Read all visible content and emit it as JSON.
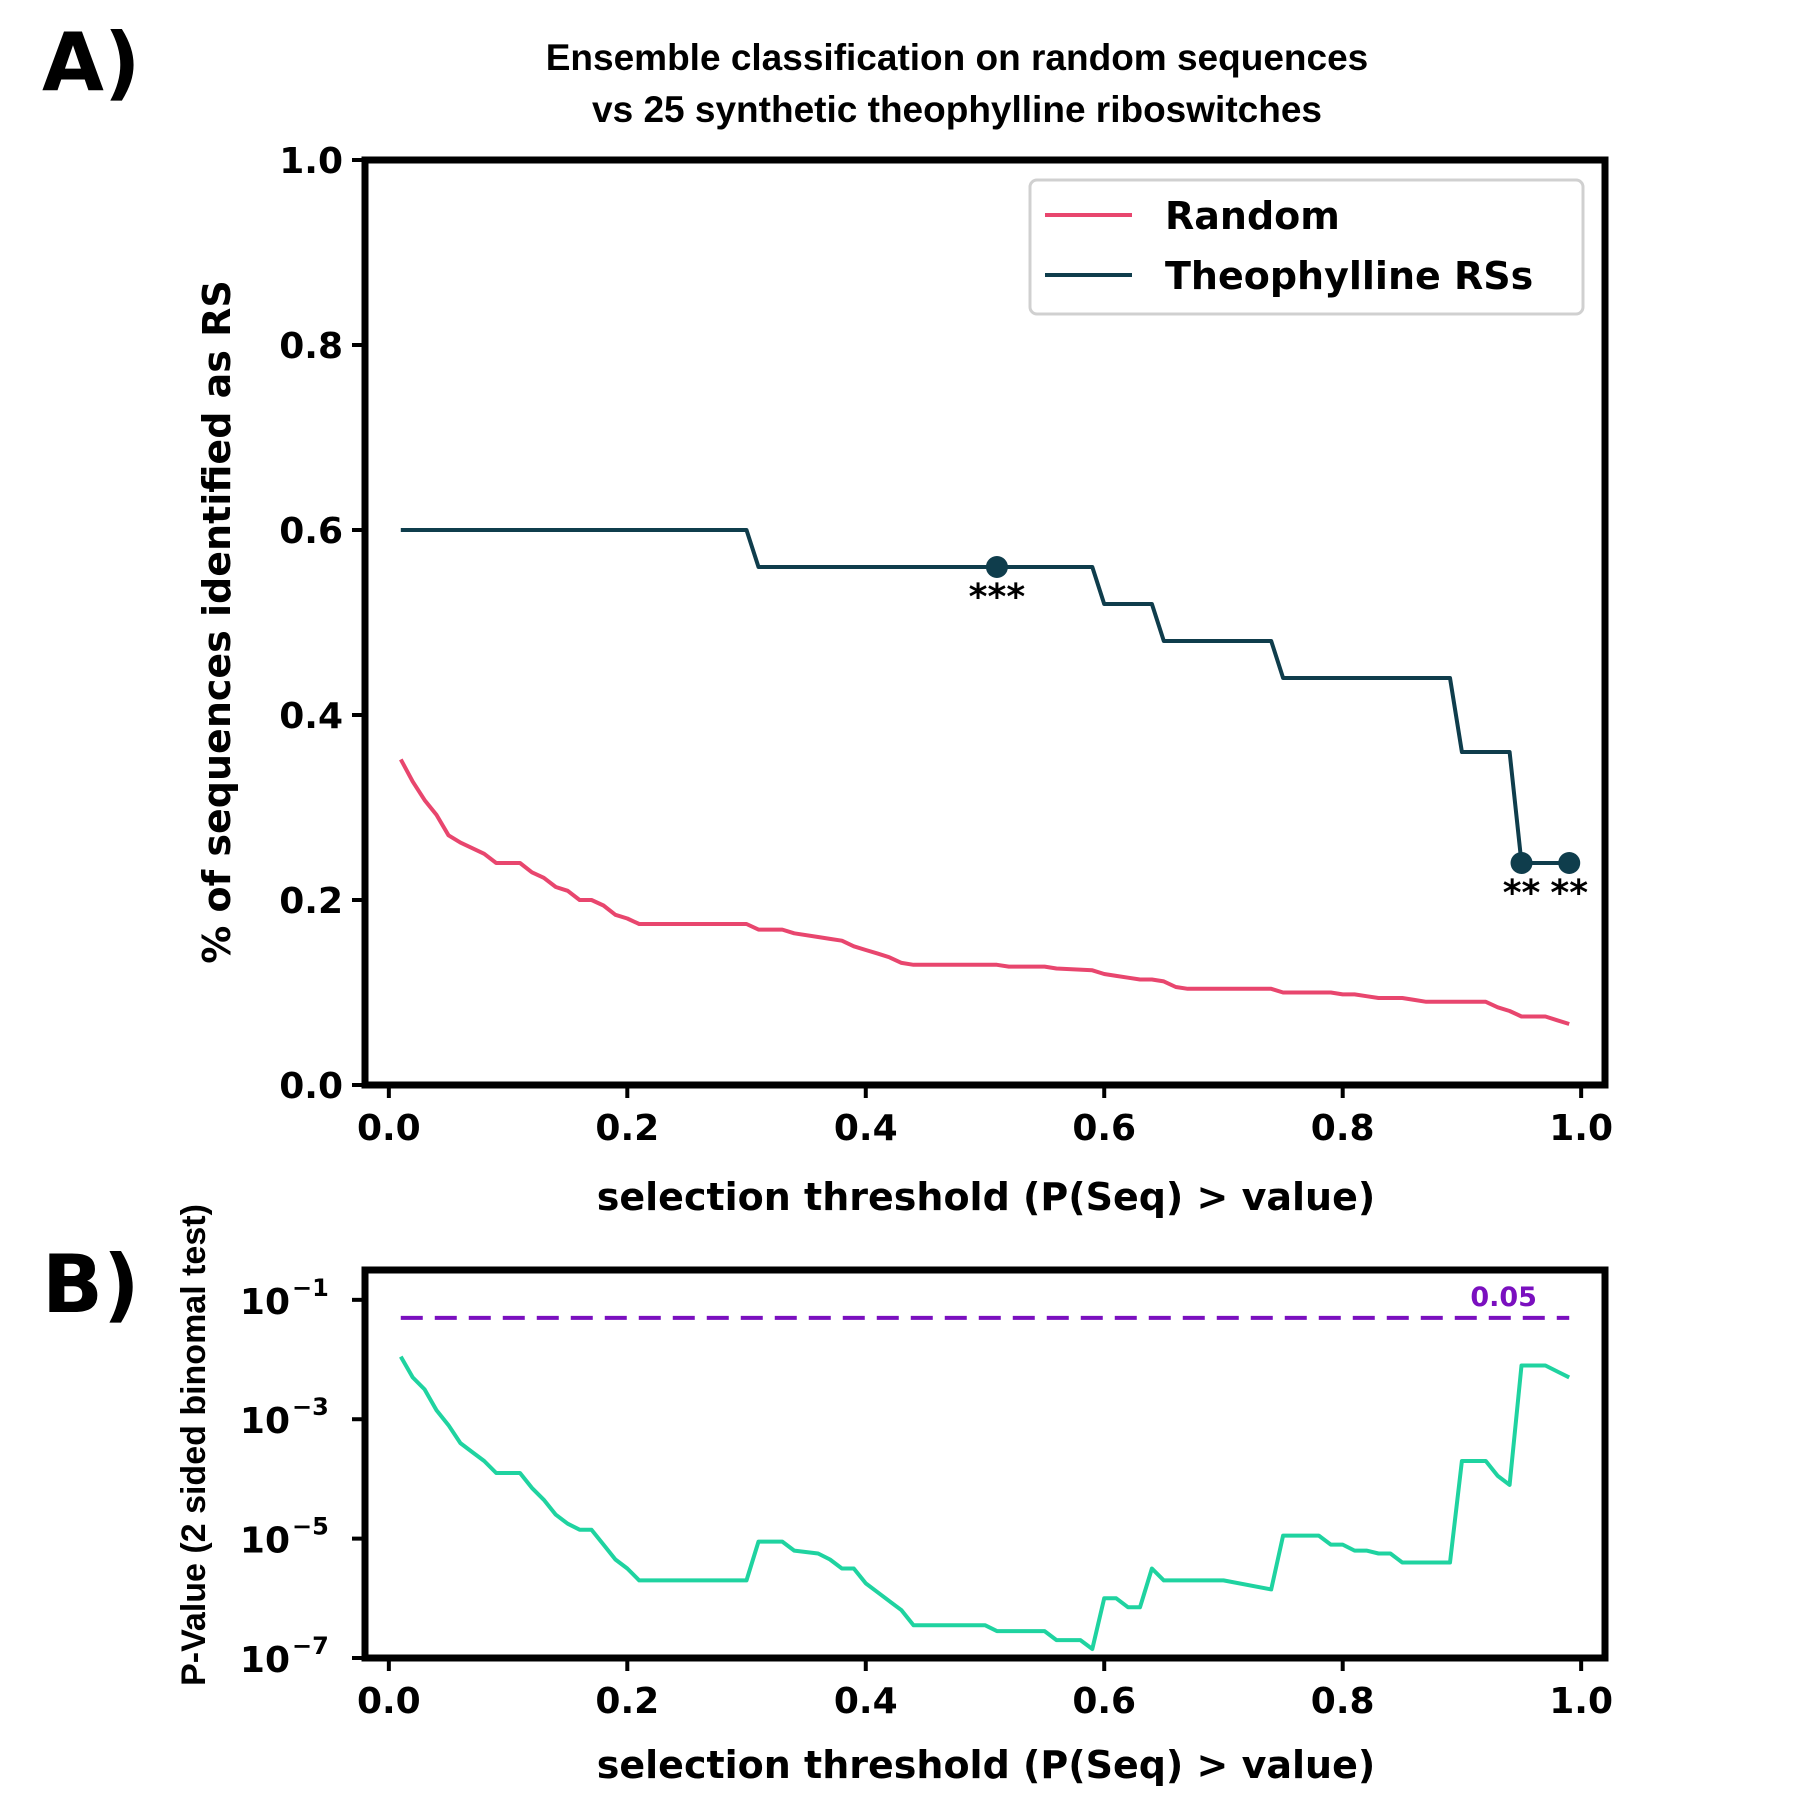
{
  "panel_a": {
    "label": "A)",
    "title_line1": "Ensemble classification on random sequences",
    "title_line2": "vs 25 synthetic theophylline riboswitches"
  },
  "panel_b": {
    "label": "B)"
  },
  "chart_data": [
    {
      "type": "line",
      "panel": "A",
      "title": "Ensemble classification on random sequences vs 25 synthetic theophylline riboswitches",
      "xlabel": "selection threshold (P(Seq) > value)",
      "ylabel": "% of sequences identified as RS",
      "xlim": [
        -0.02,
        1.02
      ],
      "ylim": [
        0,
        1.0
      ],
      "xticks": [
        "0.0",
        "0.2",
        "0.4",
        "0.6",
        "0.8",
        "1.0"
      ],
      "yticks": [
        "0.0",
        "0.2",
        "0.4",
        "0.6",
        "0.8",
        "1.0"
      ],
      "grid": false,
      "legend_position": "top-right",
      "series": [
        {
          "name": "Random",
          "color": "#e8466e",
          "x": [
            0.01,
            0.02,
            0.03,
            0.04,
            0.05,
            0.06,
            0.07,
            0.08,
            0.09,
            0.1,
            0.11,
            0.12,
            0.13,
            0.14,
            0.15,
            0.16,
            0.17,
            0.18,
            0.19,
            0.2,
            0.21,
            0.25,
            0.3,
            0.31,
            0.33,
            0.34,
            0.36,
            0.37,
            0.38,
            0.39,
            0.4,
            0.41,
            0.42,
            0.43,
            0.44,
            0.5,
            0.51,
            0.52,
            0.55,
            0.56,
            0.59,
            0.6,
            0.61,
            0.62,
            0.63,
            0.64,
            0.65,
            0.66,
            0.67,
            0.7,
            0.74,
            0.75,
            0.78,
            0.79,
            0.8,
            0.81,
            0.82,
            0.83,
            0.84,
            0.85,
            0.86,
            0.87,
            0.9,
            0.92,
            0.93,
            0.94,
            0.95,
            0.96,
            0.97,
            0.98,
            0.99
          ],
          "y": [
            0.352,
            0.328,
            0.308,
            0.292,
            0.27,
            0.262,
            0.256,
            0.25,
            0.24,
            0.24,
            0.24,
            0.23,
            0.224,
            0.214,
            0.21,
            0.2,
            0.2,
            0.194,
            0.184,
            0.18,
            0.174,
            0.174,
            0.174,
            0.168,
            0.168,
            0.164,
            0.16,
            0.158,
            0.156,
            0.15,
            0.146,
            0.142,
            0.138,
            0.132,
            0.13,
            0.13,
            0.13,
            0.128,
            0.128,
            0.126,
            0.124,
            0.12,
            0.118,
            0.116,
            0.114,
            0.114,
            0.112,
            0.106,
            0.104,
            0.104,
            0.104,
            0.1,
            0.1,
            0.1,
            0.098,
            0.098,
            0.096,
            0.094,
            0.094,
            0.094,
            0.092,
            0.09,
            0.09,
            0.09,
            0.084,
            0.08,
            0.074,
            0.074,
            0.074,
            0.07,
            0.066
          ]
        },
        {
          "name": "Theophylline RSs",
          "color": "#0f3d4c",
          "x": [
            0.01,
            0.3,
            0.31,
            0.59,
            0.6,
            0.64,
            0.65,
            0.74,
            0.75,
            0.89,
            0.9,
            0.94,
            0.95,
            0.99
          ],
          "y": [
            0.6,
            0.6,
            0.56,
            0.56,
            0.52,
            0.52,
            0.48,
            0.48,
            0.44,
            0.44,
            0.36,
            0.36,
            0.24,
            0.24
          ]
        }
      ],
      "annotations": [
        {
          "x": 0.51,
          "y": 0.56,
          "text": "***"
        },
        {
          "x": 0.95,
          "y": 0.24,
          "text": "**"
        },
        {
          "x": 0.99,
          "y": 0.24,
          "text": "**"
        }
      ]
    },
    {
      "type": "line",
      "panel": "B",
      "xlabel": "selection threshold (P(Seq) > value)",
      "ylabel": "P-Value (2 sided binomal test)",
      "yscale": "log",
      "xlim": [
        -0.02,
        1.02
      ],
      "ylim_log10": [
        -7,
        -0.5
      ],
      "xticks": [
        "0.0",
        "0.2",
        "0.4",
        "0.6",
        "0.8",
        "1.0"
      ],
      "yticks": [
        {
          "base": "10",
          "exp": "−1",
          "log10": -1
        },
        {
          "base": "10",
          "exp": "−3",
          "log10": -3
        },
        {
          "base": "10",
          "exp": "−5",
          "log10": -5
        },
        {
          "base": "10",
          "exp": "−7",
          "log10": -7
        }
      ],
      "grid": false,
      "threshold": {
        "value": 0.05,
        "label": "0.05",
        "color": "#7a0fbf",
        "style": "dashed"
      },
      "series": [
        {
          "name": "",
          "color": "#1fd3a0",
          "x": [
            0.01,
            0.02,
            0.03,
            0.04,
            0.05,
            0.06,
            0.07,
            0.08,
            0.09,
            0.1,
            0.11,
            0.12,
            0.13,
            0.14,
            0.15,
            0.16,
            0.17,
            0.18,
            0.19,
            0.2,
            0.21,
            0.25,
            0.3,
            0.31,
            0.33,
            0.34,
            0.36,
            0.37,
            0.38,
            0.39,
            0.4,
            0.41,
            0.42,
            0.43,
            0.44,
            0.5,
            0.51,
            0.52,
            0.55,
            0.56,
            0.58,
            0.59,
            0.6,
            0.61,
            0.62,
            0.63,
            0.64,
            0.65,
            0.66,
            0.67,
            0.7,
            0.74,
            0.75,
            0.78,
            0.79,
            0.8,
            0.81,
            0.82,
            0.83,
            0.84,
            0.85,
            0.86,
            0.87,
            0.89,
            0.9,
            0.92,
            0.93,
            0.94,
            0.95,
            0.96,
            0.97,
            0.98,
            0.99
          ],
          "y_log10": [
            -1.95,
            -2.3,
            -2.5,
            -2.85,
            -3.1,
            -3.4,
            -3.55,
            -3.7,
            -3.9,
            -3.9,
            -3.9,
            -4.15,
            -4.35,
            -4.6,
            -4.75,
            -4.85,
            -4.85,
            -5.1,
            -5.35,
            -5.5,
            -5.7,
            -5.7,
            -5.7,
            -5.05,
            -5.05,
            -5.2,
            -5.25,
            -5.35,
            -5.5,
            -5.5,
            -5.75,
            -5.9,
            -6.05,
            -6.2,
            -6.45,
            -6.45,
            -6.55,
            -6.55,
            -6.55,
            -6.7,
            -6.7,
            -6.85,
            -6.0,
            -6.0,
            -6.15,
            -6.15,
            -5.5,
            -5.7,
            -5.7,
            -5.7,
            -5.7,
            -5.85,
            -4.95,
            -4.95,
            -5.1,
            -5.1,
            -5.2,
            -5.2,
            -5.25,
            -5.25,
            -5.4,
            -5.4,
            -5.4,
            -5.4,
            -3.7,
            -3.7,
            -3.95,
            -4.1,
            -2.1,
            -2.1,
            -2.1,
            -2.2,
            -2.3
          ]
        }
      ]
    }
  ]
}
